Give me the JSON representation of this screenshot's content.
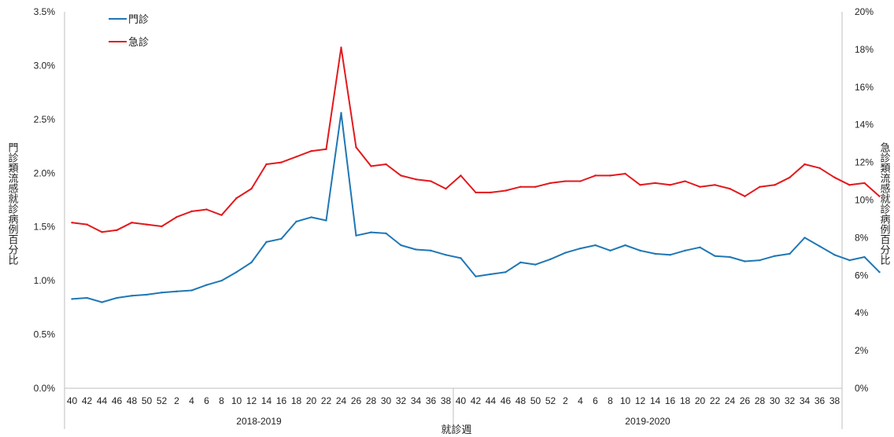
{
  "chart_data": {
    "type": "line",
    "title": "",
    "xlabel": "就診週",
    "ylabel_left": "門診類流感就診病例百分比",
    "ylabel_right": "急診類流感就診病例百分比",
    "ylim_left": [
      0,
      3.5
    ],
    "ylim_right": [
      0,
      20
    ],
    "yticks_left": [
      "0.0%",
      "0.5%",
      "1.0%",
      "1.5%",
      "2.0%",
      "2.5%",
      "3.0%",
      "3.5%"
    ],
    "yticks_right": [
      "0%",
      "2%",
      "4%",
      "6%",
      "8%",
      "10%",
      "12%",
      "14%",
      "16%",
      "18%",
      "20%"
    ],
    "x_ticks": [
      "40",
      "42",
      "44",
      "46",
      "48",
      "50",
      "52",
      "2",
      "4",
      "6",
      "8",
      "10",
      "12",
      "14",
      "16",
      "18",
      "20",
      "22",
      "24",
      "26",
      "28",
      "30",
      "32",
      "34",
      "36",
      "38",
      "40",
      "42",
      "44",
      "46",
      "48",
      "50",
      "52",
      "2",
      "4",
      "6",
      "8",
      "10",
      "12",
      "14",
      "16",
      "18",
      "20",
      "22",
      "24",
      "26",
      "28",
      "30",
      "32",
      "34",
      "36",
      "38"
    ],
    "season_groups": [
      {
        "label": "2018-2019"
      },
      {
        "label": "2019-2020"
      }
    ],
    "grid": false,
    "legend_position": "top-left",
    "series": [
      {
        "name": "門診",
        "color": "#1f77b4",
        "axis": "left",
        "values": [
          0.83,
          0.84,
          0.8,
          0.84,
          0.86,
          0.87,
          0.89,
          0.9,
          0.91,
          0.96,
          1.0,
          1.08,
          1.17,
          1.36,
          1.39,
          1.55,
          1.59,
          1.56,
          2.56,
          1.42,
          1.45,
          1.44,
          1.33,
          1.29,
          1.28,
          1.24,
          1.21,
          1.04,
          1.06,
          1.08,
          1.17,
          1.15,
          1.2,
          1.26,
          1.3,
          1.33,
          1.28,
          1.33,
          1.28,
          1.25,
          1.24,
          1.28,
          1.31,
          1.23,
          1.22,
          1.18,
          1.19,
          1.23,
          1.25,
          1.4,
          1.32,
          1.24,
          1.19,
          1.22,
          1.08
        ]
      },
      {
        "name": "急診",
        "color": "#e3191c",
        "axis": "right",
        "values": [
          8.8,
          8.7,
          8.3,
          8.4,
          8.8,
          8.7,
          8.6,
          9.1,
          9.4,
          9.5,
          9.2,
          10.1,
          10.6,
          11.9,
          12.0,
          12.3,
          12.6,
          12.7,
          18.1,
          12.8,
          11.8,
          11.9,
          11.3,
          11.1,
          11.0,
          10.6,
          11.3,
          10.4,
          10.4,
          10.5,
          10.7,
          10.7,
          10.9,
          11.0,
          11.0,
          11.3,
          11.3,
          11.4,
          10.8,
          10.9,
          10.8,
          11.0,
          10.7,
          10.8,
          10.6,
          10.2,
          10.7,
          10.8,
          11.2,
          11.9,
          11.7,
          11.2,
          10.8,
          10.9,
          10.2
        ]
      }
    ]
  }
}
